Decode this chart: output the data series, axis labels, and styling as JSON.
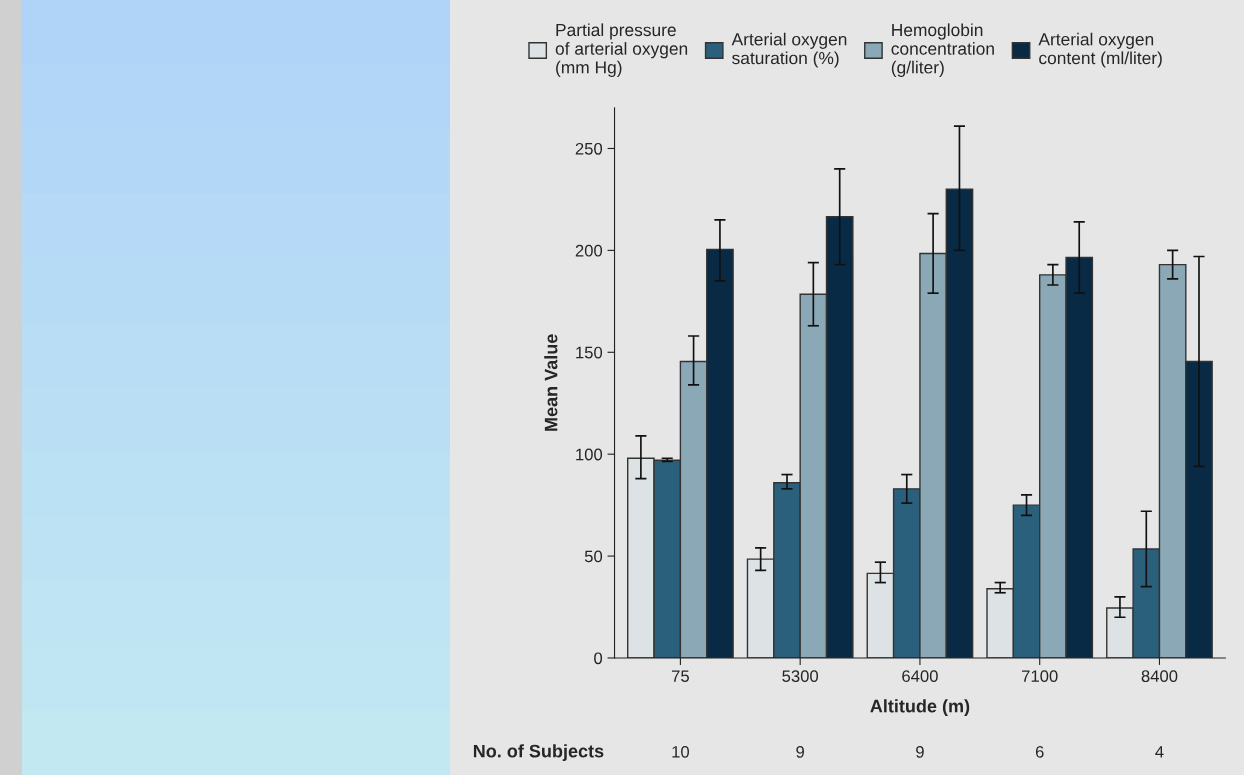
{
  "chart_data": {
    "type": "bar",
    "xlabel": "Altitude (m)",
    "ylabel": "Mean Value",
    "categories": [
      "75",
      "5300",
      "6400",
      "7100",
      "8400"
    ],
    "series": [
      {
        "name": "Partial pressure\nof arterial oxygen\n(mm Hg)",
        "color": "#dde2e4",
        "values": [
          98,
          48.5,
          41.5,
          34,
          24.5
        ],
        "errors": [
          [
            88,
            109
          ],
          [
            43,
            54
          ],
          [
            37,
            47
          ],
          [
            32,
            37
          ],
          [
            20,
            30
          ]
        ]
      },
      {
        "name": "Arterial oxygen\nsaturation (%)",
        "color": "#2b607c",
        "values": [
          97,
          86,
          83,
          75,
          53.5
        ],
        "errors": [
          [
            96.5,
            98
          ],
          [
            83,
            90
          ],
          [
            76,
            90
          ],
          [
            70,
            80
          ],
          [
            35,
            72
          ]
        ]
      },
      {
        "name": "Hemoglobin\nconcentration\n(g/liter)",
        "color": "#8aa8b6",
        "values": [
          145.5,
          178.5,
          198.5,
          188,
          193
        ],
        "errors": [
          [
            134,
            158
          ],
          [
            163,
            194
          ],
          [
            179,
            218
          ],
          [
            183,
            193
          ],
          [
            186,
            200
          ]
        ]
      },
      {
        "name": "Arterial oxygen\ncontent (ml/liter)",
        "color": "#082a45",
        "values": [
          200.5,
          216.5,
          230,
          196.5,
          145.5
        ],
        "errors": [
          [
            185,
            215
          ],
          [
            193,
            240
          ],
          [
            200,
            261
          ],
          [
            179,
            214
          ],
          [
            94,
            197
          ]
        ]
      }
    ],
    "ylim": [
      0,
      270
    ],
    "yticks": [
      0,
      50,
      100,
      150,
      200,
      250
    ],
    "grid": false,
    "legend": "top",
    "annotations": [
      "No. of Subjects",
      "10",
      "9",
      "9",
      "6",
      "4"
    ]
  }
}
